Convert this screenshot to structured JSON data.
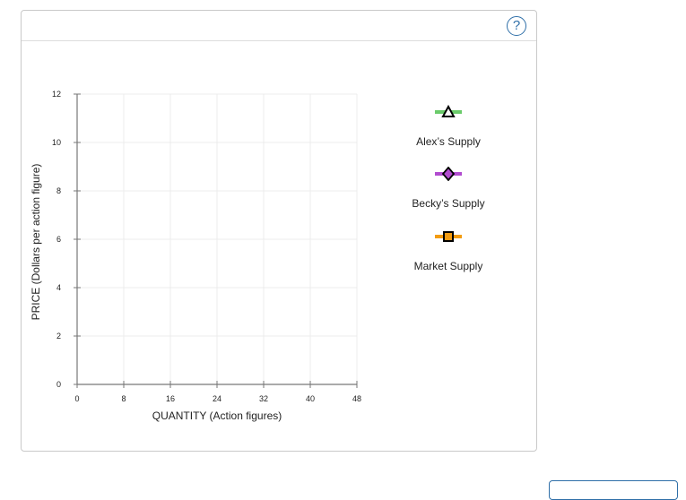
{
  "help": {
    "label": "?"
  },
  "legend": [
    {
      "label": "Alex’s Supply",
      "color": "#6acb6a",
      "marker": "triangle",
      "icon": "triangle-marker-icon"
    },
    {
      "label": "Becky’s Supply",
      "color": "#b14ccf",
      "marker": "diamond",
      "icon": "diamond-marker-icon"
    },
    {
      "label": "Market Supply",
      "color": "#f39c12",
      "marker": "square",
      "icon": "square-marker-icon"
    }
  ],
  "chart_data": {
    "type": "line",
    "title": "",
    "xlabel": "QUANTITY (Action figures)",
    "ylabel": "PRICE (Dollars per action figure)",
    "xlim": [
      0,
      48
    ],
    "ylim": [
      0,
      12
    ],
    "xticks": [
      0,
      8,
      16,
      24,
      32,
      40,
      48
    ],
    "yticks": [
      0,
      2,
      4,
      6,
      8,
      10,
      12
    ],
    "grid": true,
    "series": []
  }
}
